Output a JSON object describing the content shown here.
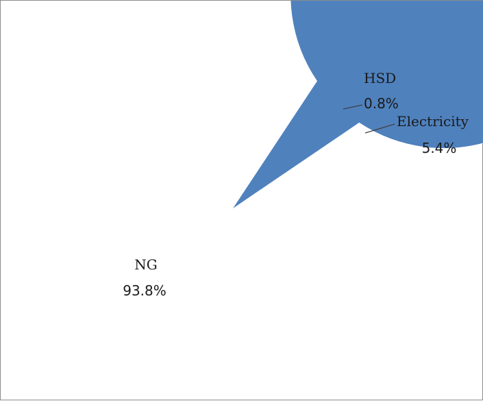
{
  "chart_data": {
    "type": "pie",
    "title": "",
    "slices": [
      {
        "label": "NG",
        "percent_label": "93.8%",
        "value": 93.8,
        "color": "#4f81bd"
      },
      {
        "label": "HSD",
        "percent_label": "0.8%",
        "value": 0.8,
        "color": "#c0504d"
      },
      {
        "label": "Electricity",
        "percent_label": "5.4%",
        "value": 5.4,
        "color": "#4bacc6"
      }
    ]
  }
}
